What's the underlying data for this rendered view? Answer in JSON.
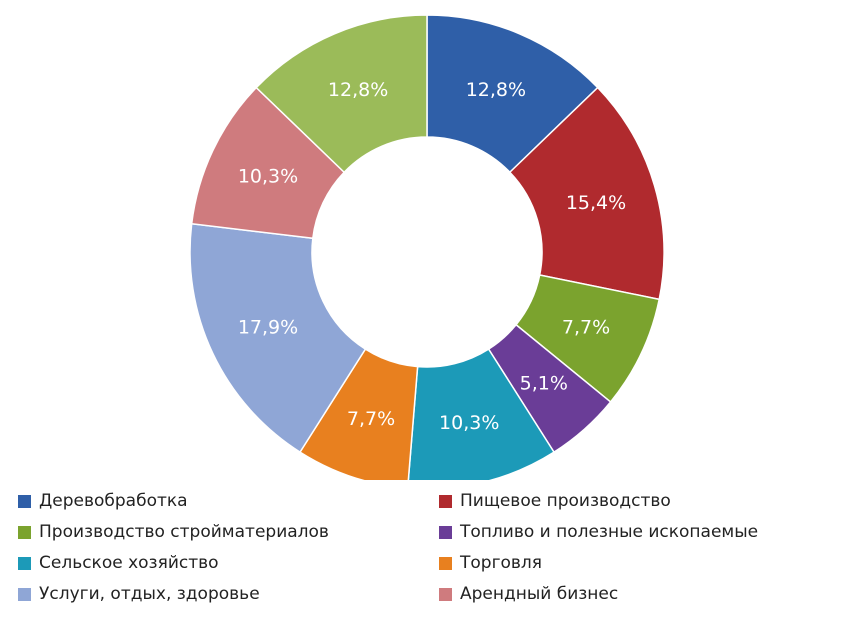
{
  "chart_data": {
    "type": "pie",
    "donut": true,
    "start_angle_deg": 0,
    "direction": "clockwise",
    "categories": [
      "Деревобработка",
      "Пищевое производство",
      "Производство стройматериалов",
      "Топливо и полезные ископаемые",
      "Сельское хозяйство",
      "Торговля",
      "Услуги, отдых, здоровье",
      "Арендный бизнес"
    ],
    "values": [
      12.8,
      15.4,
      7.7,
      5.1,
      10.3,
      7.7,
      17.9,
      10.3
    ],
    "labels": [
      "12,8%",
      "15,4%",
      "7,7%",
      "5,1%",
      "10,3%",
      "7,7%",
      "17,9%",
      "10,3%"
    ],
    "colors": [
      "#2F5FA8",
      "#B02A2E",
      "#7BA32E",
      "#6A3D97",
      "#1C9AB8",
      "#E8801F",
      "#8FA6D6",
      "#CF7B7E"
    ],
    "legend_position": "bottom",
    "extra_segment": {
      "value": 12.8,
      "label": "12,8%",
      "color": "#9BBB59"
    }
  }
}
